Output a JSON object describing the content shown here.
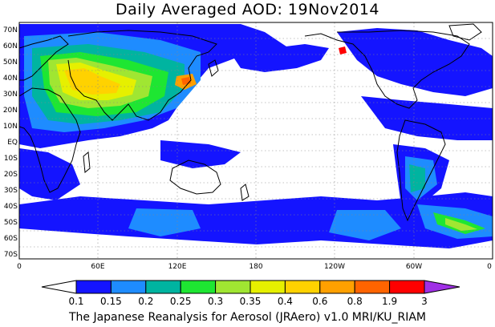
{
  "title": "Daily Averaged AOD: 19Nov2014",
  "credit": "The Japanese Reanalysis for Aerosol (JRAero) v1.0 MRI/KU_RIAM",
  "axes": {
    "lat_labels": [
      "70N",
      "60N",
      "50N",
      "40N",
      "30N",
      "20N",
      "10N",
      "EQ",
      "10S",
      "20S",
      "30S",
      "40S",
      "50S",
      "60S",
      "70S"
    ],
    "lon_labels": [
      "0",
      "60E",
      "120E",
      "180",
      "120W",
      "60W",
      "0"
    ]
  },
  "legend": {
    "levels": [
      "0.1",
      "0.15",
      "0.2",
      "0.25",
      "0.3",
      "0.35",
      "0.4",
      "0.6",
      "0.8",
      "1.9",
      "3"
    ],
    "colors": [
      "#ffffff",
      "#1414ff",
      "#1e8cff",
      "#00b4a0",
      "#1ee632",
      "#a0e632",
      "#e6f000",
      "#ffd200",
      "#ffa000",
      "#ff6400",
      "#ff0000",
      "#a030e6"
    ]
  },
  "map_features": {
    "continents": [
      "Africa",
      "Europe",
      "Asia",
      "Australia",
      "North America",
      "South America",
      "Antarctica-margin"
    ],
    "high_aod_regions": [
      "North Africa",
      "Middle East",
      "India",
      "East China",
      "Southern Ocean belt"
    ]
  }
}
